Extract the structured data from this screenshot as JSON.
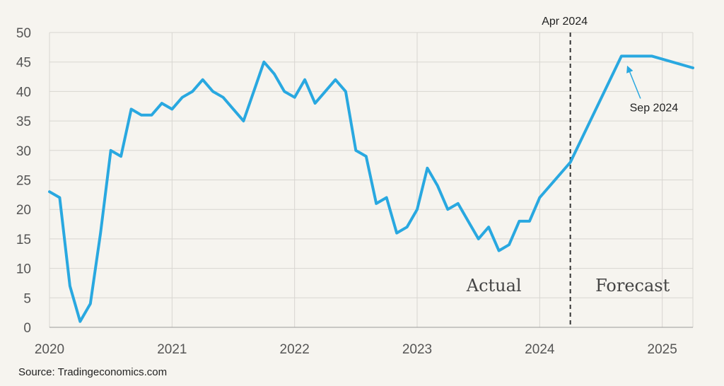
{
  "chart_data": {
    "type": "line",
    "title": "",
    "xlabel": "",
    "ylabel": "",
    "ylim": [
      0,
      50
    ],
    "yticks": [
      0,
      5,
      10,
      15,
      20,
      25,
      30,
      35,
      40,
      45,
      50
    ],
    "xlim": [
      "2020-01",
      "2025-04"
    ],
    "xticks": [
      "2020",
      "2021",
      "2022",
      "2023",
      "2024",
      "2025"
    ],
    "grid": true,
    "colors": {
      "line": "#29a8e0",
      "divider": "#333333",
      "annotation_arrow": "#29a8e0"
    },
    "series": [
      {
        "points": [
          [
            "2020-01",
            23
          ],
          [
            "2020-02",
            22
          ],
          [
            "2020-03",
            7
          ],
          [
            "2020-04",
            1
          ],
          [
            "2020-05",
            4
          ],
          [
            "2020-06",
            16
          ],
          [
            "2020-07",
            30
          ],
          [
            "2020-08",
            29
          ],
          [
            "2020-09",
            37
          ],
          [
            "2020-10",
            36
          ],
          [
            "2020-11",
            36
          ],
          [
            "2020-12",
            38
          ],
          [
            "2021-01",
            37
          ],
          [
            "2021-02",
            39
          ],
          [
            "2021-03",
            40
          ],
          [
            "2021-04",
            42
          ],
          [
            "2021-05",
            40
          ],
          [
            "2021-06",
            39
          ],
          [
            "2021-07",
            37
          ],
          [
            "2021-08",
            35
          ],
          [
            "2021-09",
            40
          ],
          [
            "2021-10",
            45
          ],
          [
            "2021-11",
            43
          ],
          [
            "2021-12",
            40
          ],
          [
            "2022-01",
            39
          ],
          [
            "2022-02",
            42
          ],
          [
            "2022-03",
            38
          ],
          [
            "2022-04",
            40
          ],
          [
            "2022-05",
            42
          ],
          [
            "2022-06",
            40
          ],
          [
            "2022-07",
            30
          ],
          [
            "2022-08",
            29
          ],
          [
            "2022-09",
            21
          ],
          [
            "2022-10",
            22
          ],
          [
            "2022-11",
            16
          ],
          [
            "2022-12",
            17
          ],
          [
            "2023-01",
            20
          ],
          [
            "2023-02",
            27
          ],
          [
            "2023-03",
            24
          ],
          [
            "2023-04",
            20
          ],
          [
            "2023-05",
            21
          ],
          [
            "2023-06",
            18
          ],
          [
            "2023-07",
            15
          ],
          [
            "2023-08",
            17
          ],
          [
            "2023-09",
            13
          ],
          [
            "2023-10",
            14
          ],
          [
            "2023-11",
            18
          ],
          [
            "2023-12",
            18
          ],
          [
            "2024-01",
            22
          ],
          [
            "2024-04",
            28
          ],
          [
            "2024-09",
            46
          ],
          [
            "2024-12",
            46
          ],
          [
            "2025-04",
            44
          ]
        ]
      }
    ],
    "divider": {
      "date": "2024-04",
      "label": "Apr 2024"
    },
    "regions": {
      "left": "Actual",
      "right": "Forecast"
    },
    "annotations": [
      {
        "label": "Sep 2024",
        "date": "2024-09",
        "value": 46
      }
    ]
  },
  "footer": {
    "source": "Source: Tradingeconomics.com"
  }
}
